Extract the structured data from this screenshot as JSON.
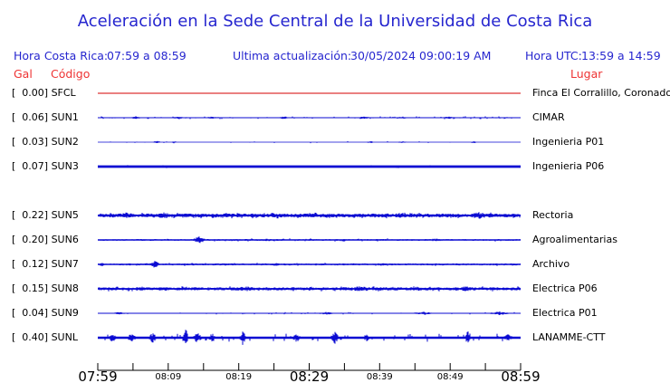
{
  "title": "Aceleración en la Sede Central de la Universidad de Costa Rica",
  "header": {
    "hora_cr_label": "Hora Costa Rica:",
    "hora_cr_value": "07:59 a 08:59",
    "update_label": "Ultima actualización:",
    "update_value": "30/05/2024 09:00:19 AM",
    "utc_label": "Hora UTC:",
    "utc_value": "13:59 a 14:59",
    "col_gal": "Gal",
    "col_codigo": "Código",
    "col_lugar": "Lugar"
  },
  "colors": {
    "blue_text": "#2626cf",
    "red_text": "#ee3333",
    "trace_blue": "#0a0ad2",
    "trace_red": "#d40000",
    "axis_black": "#000000"
  },
  "stations": [
    {
      "gal": "0.00",
      "code": "SFCL",
      "place": "Finca El Corralillo, Coronado",
      "row": 0,
      "color": "#d40000",
      "wave": {
        "seed": 11,
        "amp": 0,
        "half": 0.5,
        "rate": 0,
        "sAmp": 0,
        "bursts": []
      }
    },
    {
      "gal": "0.06",
      "code": "SUN1",
      "place": "CIMAR",
      "row": 1,
      "color": "#0a0ad2",
      "wave": {
        "seed": 21,
        "amp": 0.55,
        "half": 0.45,
        "rate": 0.18,
        "sAmp": 1.6,
        "bursts": [
          {
            "t": 0.09,
            "w": 0.015,
            "a": 1.8
          },
          {
            "t": 0.19,
            "w": 0.02,
            "a": 1.5
          },
          {
            "t": 0.27,
            "w": 0.02,
            "a": 1.4
          },
          {
            "t": 0.44,
            "w": 0.012,
            "a": 2.2
          },
          {
            "t": 0.63,
            "w": 0.02,
            "a": 1.6
          },
          {
            "t": 0.72,
            "w": 0.02,
            "a": 1.5
          },
          {
            "t": 0.83,
            "w": 0.02,
            "a": 1.5
          }
        ]
      }
    },
    {
      "gal": "0.03",
      "code": "SUN2",
      "place": "Ingenieria P01",
      "row": 2,
      "color": "#0a0ad2",
      "wave": {
        "seed": 31,
        "amp": 0.3,
        "half": 0.4,
        "rate": 0.05,
        "sAmp": 1.1,
        "bursts": [
          {
            "t": 0.14,
            "w": 0.015,
            "a": 1.4
          },
          {
            "t": 0.18,
            "w": 0.01,
            "a": 1.3
          },
          {
            "t": 0.645,
            "w": 0.012,
            "a": 1.2
          },
          {
            "t": 0.72,
            "w": 0.015,
            "a": 1.1
          },
          {
            "t": 0.89,
            "w": 0.01,
            "a": 1.2
          }
        ]
      }
    },
    {
      "gal": "0.07",
      "code": "SUN3",
      "place": "Ingenieria P06",
      "row": 3,
      "color": "#0a0ad2",
      "wave": {
        "seed": 41,
        "amp": 0.7,
        "half": 1.4,
        "rate": 0.04,
        "sAmp": 1.6,
        "bursts": [
          {
            "t": 0.645,
            "w": 0.015,
            "a": 2.0
          },
          {
            "t": 0.71,
            "w": 0.015,
            "a": 1.9
          },
          {
            "t": 0.975,
            "w": 0.01,
            "a": 1.8
          }
        ]
      }
    },
    {
      "gal": "0.22",
      "code": "SUN5",
      "place": "Rectoria",
      "row": 5,
      "color": "#0a0ad2",
      "wave": {
        "seed": 51,
        "amp": 2.1,
        "half": 1.0,
        "rate": 0.22,
        "sAmp": 3.2,
        "bursts": [
          {
            "t": 0.07,
            "w": 0.03,
            "a": 3.4
          },
          {
            "t": 0.155,
            "w": 0.025,
            "a": 4.2
          },
          {
            "t": 0.3,
            "w": 0.03,
            "a": 3.2
          },
          {
            "t": 0.5,
            "w": 0.03,
            "a": 3.0
          },
          {
            "t": 0.72,
            "w": 0.03,
            "a": 3.4
          },
          {
            "t": 0.9,
            "w": 0.035,
            "a": 4.2
          }
        ]
      }
    },
    {
      "gal": "0.20",
      "code": "SUN6",
      "place": "Agroalimentarias",
      "row": 6,
      "color": "#0a0ad2",
      "wave": {
        "seed": 61,
        "amp": 1.0,
        "half": 0.7,
        "rate": 0.1,
        "sAmp": 1.8,
        "bursts": [
          {
            "t": 0.24,
            "w": 0.018,
            "a": 4.5
          },
          {
            "t": 0.4,
            "w": 0.03,
            "a": 1.6
          },
          {
            "t": 0.58,
            "w": 0.03,
            "a": 1.6
          },
          {
            "t": 0.8,
            "w": 0.04,
            "a": 1.6
          }
        ]
      }
    },
    {
      "gal": "0.12",
      "code": "SUN7",
      "place": "Archivo",
      "row": 7,
      "color": "#0a0ad2",
      "wave": {
        "seed": 71,
        "amp": 1.1,
        "half": 0.7,
        "rate": 0.1,
        "sAmp": 1.9,
        "bursts": [
          {
            "t": 0.01,
            "w": 0.012,
            "a": 2.2
          },
          {
            "t": 0.135,
            "w": 0.015,
            "a": 4.2
          },
          {
            "t": 0.42,
            "w": 0.03,
            "a": 1.7
          },
          {
            "t": 0.67,
            "w": 0.03,
            "a": 1.6
          }
        ]
      }
    },
    {
      "gal": "0.15",
      "code": "SUN8",
      "place": "Electrica P06",
      "row": 8,
      "color": "#0a0ad2",
      "wave": {
        "seed": 81,
        "amp": 1.7,
        "half": 0.9,
        "rate": 0.16,
        "sAmp": 2.8,
        "bursts": [
          {
            "t": 0.1,
            "w": 0.025,
            "a": 3.0
          },
          {
            "t": 0.35,
            "w": 0.035,
            "a": 3.0
          },
          {
            "t": 0.62,
            "w": 0.04,
            "a": 3.2
          },
          {
            "t": 0.75,
            "w": 0.03,
            "a": 3.0
          },
          {
            "t": 0.87,
            "w": 0.03,
            "a": 3.0
          }
        ]
      }
    },
    {
      "gal": "0.04",
      "code": "SUN9",
      "place": "Electrica P01",
      "row": 9,
      "color": "#0a0ad2",
      "wave": {
        "seed": 91,
        "amp": 0.5,
        "half": 0.45,
        "rate": 0.09,
        "sAmp": 1.4,
        "bursts": [
          {
            "t": 0.05,
            "w": 0.02,
            "a": 1.6
          },
          {
            "t": 0.54,
            "w": 0.025,
            "a": 1.7
          },
          {
            "t": 0.77,
            "w": 0.03,
            "a": 1.9
          },
          {
            "t": 0.95,
            "w": 0.03,
            "a": 2.2
          }
        ]
      }
    },
    {
      "gal": "0.40",
      "code": "SUNL",
      "place": "LANAMME-CTT",
      "row": 10,
      "color": "#0a0ad2",
      "wave": {
        "seed": 101,
        "amp": 1.2,
        "half": 1.2,
        "rate": 0.14,
        "sAmp": 4.5,
        "bursts": [
          {
            "t": 0.035,
            "w": 0.015,
            "a": 5
          },
          {
            "t": 0.08,
            "w": 0.012,
            "a": 6
          },
          {
            "t": 0.13,
            "w": 0.012,
            "a": 6
          },
          {
            "t": 0.208,
            "w": 0.007,
            "a": 13
          },
          {
            "t": 0.235,
            "w": 0.012,
            "a": 7
          },
          {
            "t": 0.27,
            "w": 0.01,
            "a": 6
          },
          {
            "t": 0.343,
            "w": 0.009,
            "a": 9
          },
          {
            "t": 0.47,
            "w": 0.012,
            "a": 5
          },
          {
            "t": 0.56,
            "w": 0.012,
            "a": 8
          },
          {
            "t": 0.636,
            "w": 0.009,
            "a": 5
          },
          {
            "t": 0.875,
            "w": 0.007,
            "a": 9
          },
          {
            "t": 0.97,
            "w": 0.015,
            "a": 4
          }
        ]
      }
    }
  ],
  "time_axis": {
    "tick_count": 13,
    "labels": [
      {
        "text": "07:59",
        "tick": 0,
        "size": "major"
      },
      {
        "text": "08:09",
        "tick": 2,
        "size": "minor"
      },
      {
        "text": "08:19",
        "tick": 4,
        "size": "minor"
      },
      {
        "text": "08:29",
        "tick": 6,
        "size": "major"
      },
      {
        "text": "08:39",
        "tick": 8,
        "size": "minor"
      },
      {
        "text": "08:49",
        "tick": 10,
        "size": "minor"
      },
      {
        "text": "08:59",
        "tick": 12,
        "size": "major"
      }
    ]
  },
  "chart_data": {
    "type": "line",
    "title": "Aceleración en la Sede Central de la Universidad de Costa Rica",
    "xlabel": "Hora Costa Rica",
    "ylabel": "Gal",
    "x_range": [
      "07:59",
      "08:59"
    ],
    "x_tick_interval_minutes": 5,
    "x_tick_labels": [
      "07:59",
      "08:09",
      "08:19",
      "08:29",
      "08:39",
      "08:49",
      "08:59"
    ],
    "grid": false,
    "legend_position": "none",
    "series": [
      {
        "name": "SFCL",
        "place": "Finca El Corralillo, Coronado",
        "peak_gal": 0.0
      },
      {
        "name": "SUN1",
        "place": "CIMAR",
        "peak_gal": 0.06
      },
      {
        "name": "SUN2",
        "place": "Ingenieria P01",
        "peak_gal": 0.03
      },
      {
        "name": "SUN3",
        "place": "Ingenieria P06",
        "peak_gal": 0.07
      },
      {
        "name": "SUN5",
        "place": "Rectoria",
        "peak_gal": 0.22
      },
      {
        "name": "SUN6",
        "place": "Agroalimentarias",
        "peak_gal": 0.2
      },
      {
        "name": "SUN7",
        "place": "Archivo",
        "peak_gal": 0.12
      },
      {
        "name": "SUN8",
        "place": "Electrica P06",
        "peak_gal": 0.15
      },
      {
        "name": "SUN9",
        "place": "Electrica P01",
        "peak_gal": 0.04
      },
      {
        "name": "SUNL",
        "place": "LANAMME-CTT",
        "peak_gal": 0.4
      }
    ]
  }
}
